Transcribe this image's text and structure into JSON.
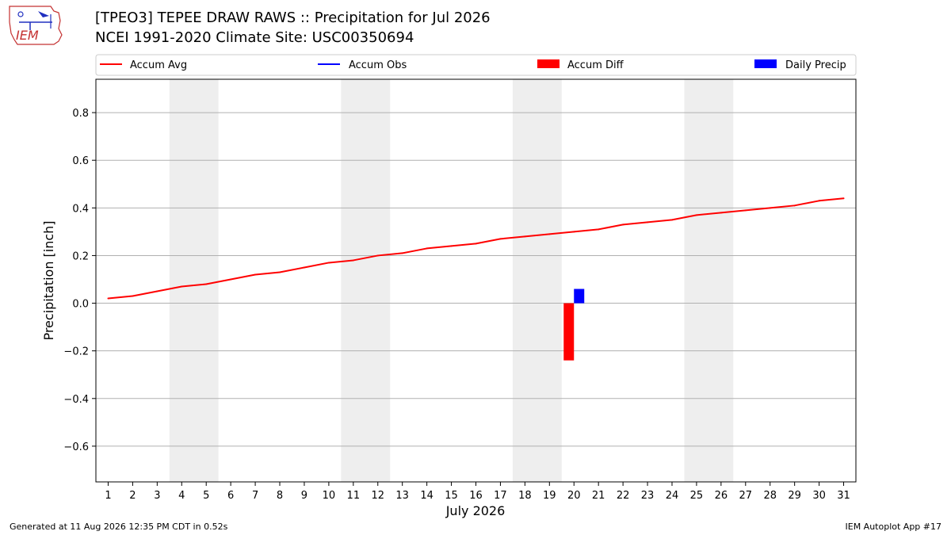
{
  "header": {
    "title": "[TPEO3] TEPEE DRAW RAWS :: Precipitation for Jul 2026",
    "subtitle": "NCEI 1991-2020 Climate Site: USC00350694"
  },
  "logo": {
    "text": "IEM"
  },
  "footer": {
    "left": "Generated at 11 Aug 2026 12:35 PM CDT in 0.52s",
    "right": "IEM Autoplot App #17"
  },
  "chart_data": {
    "type": "line",
    "xlabel": "July 2026",
    "ylabel": "Precipitation [inch]",
    "xlim": [
      0.5,
      31.5
    ],
    "ylim": [
      -0.75,
      0.94
    ],
    "grid": true,
    "legend_placement": "top",
    "x": [
      1,
      2,
      3,
      4,
      5,
      6,
      7,
      8,
      9,
      10,
      11,
      12,
      13,
      14,
      15,
      16,
      17,
      18,
      19,
      20,
      21,
      22,
      23,
      24,
      25,
      26,
      27,
      28,
      29,
      30,
      31
    ],
    "x_tick_labels": [
      "1",
      "2",
      "3",
      "4",
      "5",
      "6",
      "7",
      "8",
      "9",
      "10",
      "11",
      "12",
      "13",
      "14",
      "15",
      "16",
      "17",
      "18",
      "19",
      "20",
      "21",
      "22",
      "23",
      "24",
      "25",
      "26",
      "27",
      "28",
      "29",
      "30",
      "31"
    ],
    "y_ticks": [
      -0.6,
      -0.4,
      -0.2,
      0.0,
      0.2,
      0.4,
      0.6,
      0.8
    ],
    "y_tick_labels": [
      "−0.6",
      "−0.4",
      "−0.2",
      "0.0",
      "0.2",
      "0.4",
      "0.6",
      "0.8"
    ],
    "weekend_shading": [
      [
        3.5,
        5.5
      ],
      [
        10.5,
        12.5
      ],
      [
        17.5,
        19.5
      ],
      [
        24.5,
        26.5
      ]
    ],
    "colors": {
      "accum_avg": "#ff0000",
      "accum_obs": "#0000ff",
      "accum_diff": "#ff0000",
      "daily_precip": "#0000ff",
      "shade": "#eeeeee",
      "grid": "#b0b0b0"
    },
    "legend": [
      {
        "name": "Accum Avg",
        "kind": "line",
        "color": "#ff0000"
      },
      {
        "name": "Accum Obs",
        "kind": "line",
        "color": "#0000ff"
      },
      {
        "name": "Accum Diff",
        "kind": "bar",
        "color": "#ff0000"
      },
      {
        "name": "Daily Precip",
        "kind": "bar",
        "color": "#0000ff"
      }
    ],
    "series": [
      {
        "name": "Accum Avg",
        "kind": "line",
        "values": [
          0.02,
          0.03,
          0.05,
          0.07,
          0.08,
          0.1,
          0.12,
          0.13,
          0.15,
          0.17,
          0.18,
          0.2,
          0.21,
          0.23,
          0.24,
          0.25,
          0.27,
          0.28,
          0.29,
          0.3,
          0.31,
          0.33,
          0.34,
          0.35,
          0.37,
          0.38,
          0.39,
          0.4,
          0.41,
          0.43,
          0.44
        ]
      },
      {
        "name": "Accum Diff",
        "kind": "bar",
        "points": [
          {
            "x": 20,
            "value": -0.24
          }
        ]
      },
      {
        "name": "Daily Precip",
        "kind": "bar",
        "points": [
          {
            "x": 20,
            "value": 0.06
          }
        ]
      }
    ]
  }
}
